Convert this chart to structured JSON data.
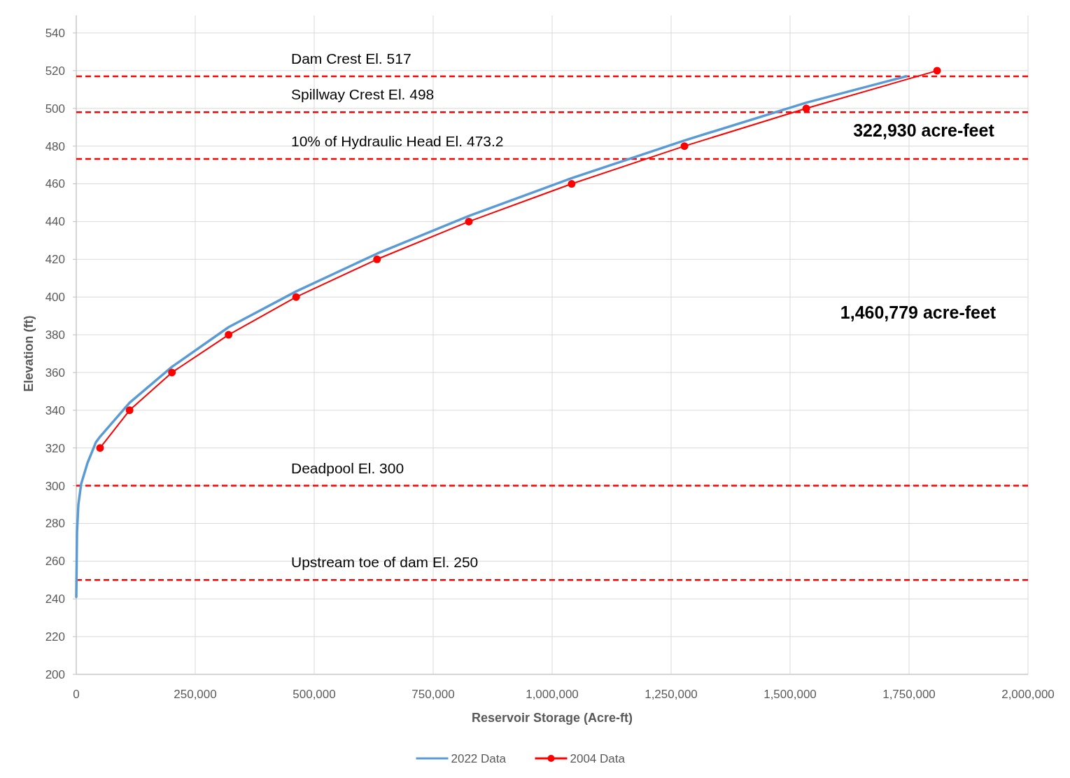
{
  "chart_data": {
    "type": "line",
    "xlabel": "Reservoir Storage (Acre-ft)",
    "ylabel": "Elevation (ft)",
    "xlim": [
      0,
      2000000
    ],
    "xticks": [
      {
        "value": 0,
        "label": "0"
      },
      {
        "value": 250000,
        "label": "250,000"
      },
      {
        "value": 500000,
        "label": "500,000"
      },
      {
        "value": 750000,
        "label": "750,000"
      },
      {
        "value": 1000000,
        "label": "1,000,000"
      },
      {
        "value": 1250000,
        "label": "1,250,000"
      },
      {
        "value": 1500000,
        "label": "1,500,000"
      },
      {
        "value": 1750000,
        "label": "1,750,000"
      },
      {
        "value": 2000000,
        "label": "2,000,000"
      }
    ],
    "ylim": [
      200,
      540
    ],
    "yticks": [
      200,
      220,
      240,
      260,
      280,
      300,
      320,
      340,
      360,
      380,
      400,
      420,
      440,
      460,
      480,
      500,
      520,
      540
    ],
    "grid": true,
    "legend": "bottom",
    "series": [
      {
        "name": "2022 Data",
        "color": "#5b9bd5",
        "marker": "none",
        "x": [
          0,
          1500,
          4400,
          10300,
          23500,
          41200,
          50000,
          112000,
          201000,
          320000,
          462000,
          632000,
          825000,
          1041000,
          1278000,
          1534000,
          1744000
        ],
        "values": [
          241,
          275,
          290,
          301,
          312,
          323,
          326,
          344,
          363,
          384,
          403,
          423,
          443,
          463,
          483,
          503,
          517
        ]
      },
      {
        "name": "2004 Data",
        "color": "#ff0000",
        "marker": "circle",
        "x": [
          50000,
          112000,
          201000,
          320000,
          462000,
          632000,
          825000,
          1041000,
          1278000,
          1534000,
          1809000
        ],
        "values": [
          320,
          340,
          360,
          380,
          400,
          420,
          440,
          460,
          480,
          500,
          520
        ]
      }
    ],
    "ref_lines": [
      {
        "axis": "y",
        "value": 517,
        "label": "Dam Crest El. 517",
        "color": "#ff0000",
        "line_style": "dashed"
      },
      {
        "axis": "y",
        "value": 498,
        "label": "Spillway Crest El. 498",
        "color": "#ff0000",
        "line_style": "dashed"
      },
      {
        "axis": "y",
        "value": 473.2,
        "label": "10% of Hydraulic Head El. 473.2",
        "color": "#ff0000",
        "line_style": "dashed"
      },
      {
        "axis": "y",
        "value": 300,
        "label": "Deadpool El. 300",
        "color": "#ff0000",
        "line_style": "dashed"
      },
      {
        "axis": "y",
        "value": 250,
        "label": "Upstream toe of dam El. 250",
        "color": "#ff0000",
        "line_style": "dashed"
      }
    ],
    "annotations": [
      "322,930 acre-feet",
      "1,460,779 acre-feet"
    ]
  }
}
